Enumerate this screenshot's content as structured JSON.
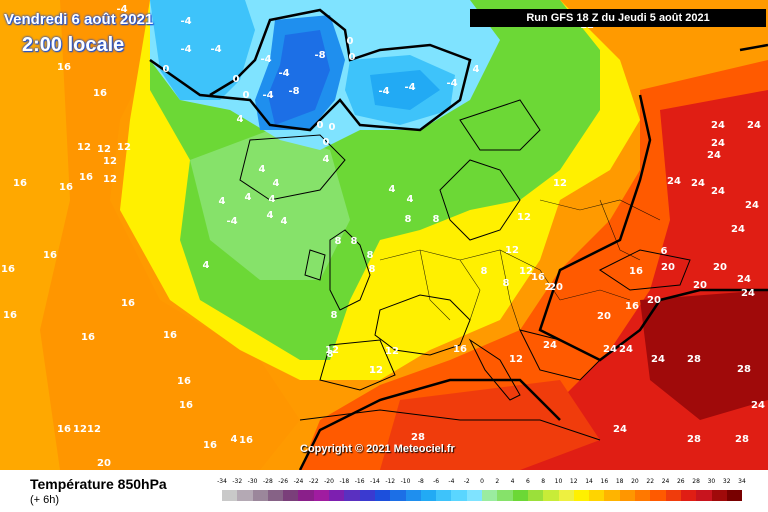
{
  "header": {
    "date": "Vendredi 6 août 2021",
    "local_time": "2:00 locale",
    "run": "Run GFS 18 Z du Jeudi 5 août 2021"
  },
  "copyright": "Copyright © 2021 Meteociel.fr",
  "footer": {
    "title": "Température 850hPa",
    "subtitle": "(+ 6h)"
  },
  "legend": {
    "labels": [
      "-34",
      "-32",
      "-30",
      "-28",
      "-26",
      "-24",
      "-22",
      "-20",
      "-18",
      "-16",
      "-14",
      "-12",
      "-10",
      "-8",
      "-6",
      "-4",
      "-2",
      "0",
      "2",
      "4",
      "6",
      "8",
      "10",
      "12",
      "14",
      "16",
      "18",
      "20",
      "22",
      "24",
      "26",
      "28",
      "30",
      "32",
      "34"
    ],
    "colors": [
      "#c9c9c9",
      "#b4a9b4",
      "#9b879b",
      "#866286",
      "#7a3f7a",
      "#8a1f8a",
      "#a01ca0",
      "#7d1fb0",
      "#5a30c0",
      "#3a3ad0",
      "#1c4fdc",
      "#1c6fe6",
      "#1f8fee",
      "#22aaf4",
      "#3ec3fa",
      "#5ad6ff",
      "#7fe3ff",
      "#9aeca0",
      "#86e26a",
      "#6cd836",
      "#9be03a",
      "#c8ec38",
      "#eef040",
      "#fff000",
      "#ffd400",
      "#ffb400",
      "#ff9600",
      "#ff7800",
      "#ff5a00",
      "#f03c0c",
      "#e01e14",
      "#c8141e",
      "#a00a0a",
      "#780000"
    ]
  },
  "map_labels": [
    {
      "t": "-4"
    },
    {
      "t": "-4"
    },
    {
      "t": "-4"
    },
    {
      "t": "-4"
    },
    {
      "t": "0"
    },
    {
      "t": "0"
    },
    {
      "t": "4"
    },
    {
      "t": "0"
    },
    {
      "t": "-4"
    },
    {
      "t": "-8"
    },
    {
      "t": "-4"
    },
    {
      "t": "-8"
    },
    {
      "t": "-4"
    },
    {
      "t": "0"
    },
    {
      "t": "0"
    },
    {
      "t": "0"
    },
    {
      "t": "-4"
    },
    {
      "t": "-4"
    },
    {
      "t": "-4"
    },
    {
      "t": "4"
    },
    {
      "t": "4"
    },
    {
      "t": "4"
    },
    {
      "t": "0"
    },
    {
      "t": "4"
    },
    {
      "t": "0"
    },
    {
      "t": "4"
    },
    {
      "t": "4"
    },
    {
      "t": "4"
    },
    {
      "t": "4"
    },
    {
      "t": "4"
    },
    {
      "t": "4"
    },
    {
      "t": "-4"
    },
    {
      "t": "4"
    },
    {
      "t": "8"
    },
    {
      "t": "8"
    },
    {
      "t": "4"
    },
    {
      "t": "8"
    },
    {
      "t": "8"
    },
    {
      "t": "8"
    },
    {
      "t": "8"
    },
    {
      "t": "8"
    },
    {
      "t": "8"
    },
    {
      "t": "8"
    },
    {
      "t": "12"
    },
    {
      "t": "12"
    },
    {
      "t": "16"
    },
    {
      "t": "16"
    },
    {
      "t": "16"
    },
    {
      "t": "16"
    },
    {
      "t": "12"
    },
    {
      "t": "12"
    },
    {
      "t": "12"
    },
    {
      "t": "16"
    },
    {
      "t": "16"
    },
    {
      "t": "16"
    },
    {
      "t": "16"
    },
    {
      "t": "16"
    },
    {
      "t": "16"
    },
    {
      "t": "16"
    },
    {
      "t": "16"
    },
    {
      "t": "16"
    },
    {
      "t": "16"
    },
    {
      "t": "12"
    },
    {
      "t": "12"
    },
    {
      "t": "16"
    },
    {
      "t": "16"
    },
    {
      "t": "20"
    },
    {
      "t": "12"
    },
    {
      "t": "12"
    },
    {
      "t": "12"
    },
    {
      "t": "12"
    },
    {
      "t": "12"
    },
    {
      "t": "12"
    },
    {
      "t": "16"
    },
    {
      "t": "2"
    },
    {
      "t": "20"
    },
    {
      "t": "16"
    },
    {
      "t": "12"
    },
    {
      "t": "20"
    },
    {
      "t": "16"
    },
    {
      "t": "20"
    },
    {
      "t": "20"
    },
    {
      "t": "6"
    },
    {
      "t": "16"
    },
    {
      "t": "24"
    },
    {
      "t": "24"
    },
    {
      "t": "24"
    },
    {
      "t": "24"
    },
    {
      "t": "24"
    },
    {
      "t": "24"
    },
    {
      "t": "24"
    },
    {
      "t": "24"
    },
    {
      "t": "24"
    },
    {
      "t": "20"
    },
    {
      "t": "24"
    },
    {
      "t": "20"
    },
    {
      "t": "24"
    },
    {
      "t": "24"
    },
    {
      "t": "24"
    },
    {
      "t": "28"
    },
    {
      "t": "24"
    },
    {
      "t": "24"
    },
    {
      "t": "28"
    },
    {
      "t": "24"
    },
    {
      "t": "28"
    },
    {
      "t": "28"
    },
    {
      "t": "24"
    },
    {
      "t": "28"
    },
    {
      "t": "28"
    },
    {
      "t": "12"
    },
    {
      "t": "12"
    },
    {
      "t": "4"
    },
    {
      "t": "8"
    },
    {
      "t": "12"
    }
  ]
}
